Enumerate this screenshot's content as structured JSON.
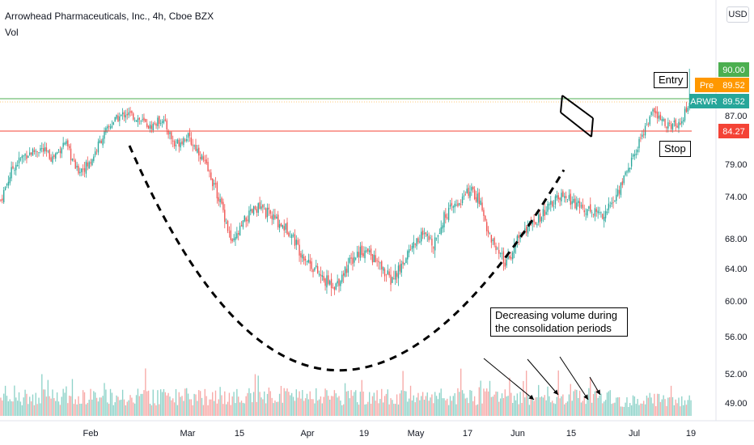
{
  "header": {
    "title": "Arrowhead Pharmaceuticals, Inc., 4h, Cboe BZX",
    "volume_label": "Vol",
    "currency": "USD"
  },
  "annotations": {
    "entry": "Entry",
    "stop": "Stop",
    "volume_note": "Decreasing volume during the consolidation periods"
  },
  "colors": {
    "up": "#26a69a",
    "down": "#ef5350",
    "up_volume": "#8fd3c9",
    "down_volume": "#f7a9a7",
    "entry_line": "#4caf50",
    "stop_line": "#f44336",
    "pre_label": "#ff9800",
    "last_label": "#26a69a"
  },
  "chart_data": {
    "type": "candlestick",
    "symbol": "ARWR",
    "interval": "4h",
    "x_ticks": [
      "Feb",
      "Mar",
      "15",
      "Apr",
      "19",
      "May",
      "17",
      "Jun",
      "15",
      "Jul",
      "19"
    ],
    "y_ticks": [
      49.0,
      52.0,
      56.0,
      60.0,
      64.0,
      68.0,
      74.0,
      79.0,
      87.0
    ],
    "price_levels": [
      {
        "label": "",
        "value": 90.0,
        "text": "90.00",
        "kind": "entry"
      },
      {
        "label": "Pre",
        "value": 89.52,
        "text": "89.52",
        "kind": "pre"
      },
      {
        "label": "ARWR",
        "value": 89.52,
        "text": "89.52",
        "kind": "last"
      },
      {
        "label": "",
        "value": 84.27,
        "text": "84.27",
        "kind": "stop"
      }
    ],
    "close_anchors": [
      [
        0,
        73.5
      ],
      [
        8,
        78.5
      ],
      [
        16,
        80.5
      ],
      [
        26,
        81.5
      ],
      [
        34,
        80.0
      ],
      [
        42,
        82.5
      ],
      [
        50,
        78.0
      ],
      [
        58,
        79.0
      ],
      [
        66,
        83.0
      ],
      [
        74,
        86.0
      ],
      [
        82,
        87.5
      ],
      [
        90,
        86.5
      ],
      [
        98,
        85.0
      ],
      [
        106,
        86.5
      ],
      [
        114,
        82.0
      ],
      [
        122,
        83.5
      ],
      [
        130,
        81.0
      ],
      [
        138,
        77.0
      ],
      [
        146,
        72.0
      ],
      [
        152,
        67.0
      ],
      [
        160,
        70.5
      ],
      [
        168,
        72.5
      ],
      [
        176,
        71.5
      ],
      [
        184,
        70.0
      ],
      [
        190,
        69.0
      ],
      [
        196,
        66.5
      ],
      [
        204,
        64.5
      ],
      [
        212,
        62.5
      ],
      [
        220,
        62.0
      ],
      [
        228,
        64.5
      ],
      [
        236,
        66.5
      ],
      [
        242,
        66.0
      ],
      [
        248,
        64.5
      ],
      [
        256,
        62.5
      ],
      [
        262,
        64.0
      ],
      [
        268,
        66.5
      ],
      [
        276,
        68.5
      ],
      [
        284,
        67.5
      ],
      [
        292,
        71.5
      ],
      [
        300,
        73.0
      ],
      [
        308,
        75.0
      ],
      [
        314,
        73.5
      ],
      [
        320,
        69.0
      ],
      [
        326,
        66.0
      ],
      [
        332,
        64.5
      ],
      [
        338,
        67.5
      ],
      [
        344,
        69.5
      ],
      [
        350,
        70.0
      ],
      [
        356,
        71.5
      ],
      [
        362,
        73.0
      ],
      [
        368,
        74.0
      ],
      [
        374,
        73.5
      ],
      [
        380,
        72.5
      ],
      [
        388,
        72.0
      ],
      [
        396,
        71.5
      ],
      [
        404,
        74.0
      ],
      [
        410,
        77.5
      ],
      [
        416,
        80.5
      ],
      [
        422,
        84.5
      ],
      [
        428,
        87.5
      ],
      [
        434,
        86.0
      ],
      [
        440,
        85.0
      ],
      [
        446,
        86.0
      ],
      [
        450,
        88.0
      ],
      [
        453,
        89.52
      ]
    ],
    "volume_range": [
      0,
      100
    ],
    "notes": "Cup-shaped rounding bottom from Feb to Jun followed by a falling-flag consolidation; entry at 90.00, stop at 84.27."
  }
}
